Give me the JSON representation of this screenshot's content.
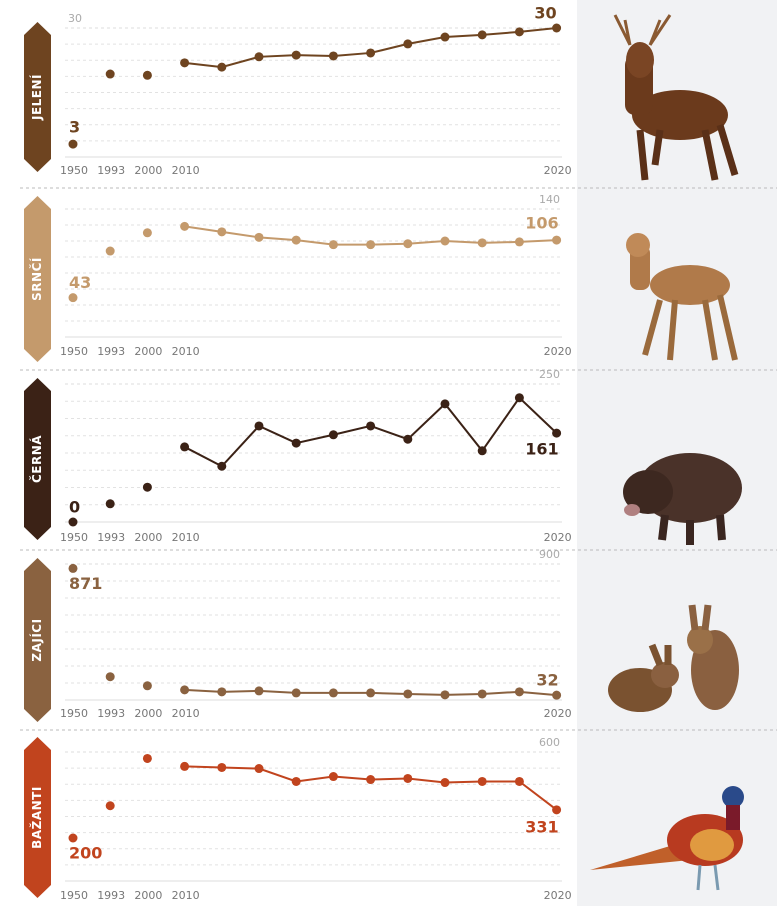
{
  "chart_data": [
    {
      "type": "line",
      "title": "JELENÍ",
      "color": "#6e4420",
      "categories": [
        "1950",
        "1993",
        "2000",
        "2010",
        null,
        null,
        null,
        null,
        null,
        null,
        null,
        null,
        null,
        "2020"
      ],
      "values": [
        3,
        19.3,
        19,
        21.9,
        20.9,
        23.3,
        23.7,
        23.5,
        24.2,
        26.3,
        27.9,
        28.4,
        29.1,
        30
      ],
      "value_labels": [
        "3",
        null,
        null,
        null,
        null,
        null,
        null,
        null,
        null,
        null,
        null,
        null,
        null,
        "30"
      ],
      "ylim": [
        0,
        30
      ],
      "yticks": [
        30
      ]
    },
    {
      "type": "line",
      "title": "SRNČÍ",
      "color": "#c49a6c",
      "categories": [
        "1950",
        "1993",
        "2000",
        "2010",
        null,
        null,
        null,
        null,
        null,
        null,
        null,
        null,
        null,
        "2020"
      ],
      "values": [
        43,
        94,
        114,
        121,
        115,
        109,
        106,
        101,
        101,
        102,
        105,
        103,
        104,
        106
      ],
      "value_labels": [
        "43",
        null,
        null,
        null,
        null,
        null,
        null,
        null,
        null,
        null,
        null,
        null,
        null,
        "106"
      ],
      "ylim": [
        0,
        140
      ],
      "yticks": [
        140
      ]
    },
    {
      "type": "line",
      "title": "ČERNÁ",
      "color": "#3b2216",
      "categories": [
        "1950",
        "1993",
        "2000",
        "2010",
        null,
        null,
        null,
        null,
        null,
        null,
        null,
        null,
        null,
        "2020"
      ],
      "values": [
        0,
        33,
        63,
        136,
        101,
        174,
        143,
        158,
        174,
        150,
        214,
        129,
        225,
        161
      ],
      "value_labels": [
        "0",
        null,
        null,
        null,
        null,
        null,
        null,
        null,
        null,
        null,
        null,
        null,
        null,
        "161"
      ],
      "ylim": [
        0,
        250
      ],
      "yticks": [
        250
      ]
    },
    {
      "type": "line",
      "title": "ZAJÍCI",
      "color": "#8a6240",
      "categories": [
        "1950",
        "1993",
        "2000",
        "2010",
        null,
        null,
        null,
        null,
        null,
        null,
        null,
        null,
        null,
        "2020"
      ],
      "values": [
        871,
        154,
        94,
        67,
        54,
        60,
        47,
        47,
        47,
        40,
        34,
        40,
        54,
        32
      ],
      "value_labels": [
        "871",
        null,
        null,
        null,
        null,
        null,
        null,
        null,
        null,
        null,
        null,
        null,
        null,
        "32"
      ],
      "ylim": [
        0,
        900
      ],
      "yticks": [
        900
      ]
    },
    {
      "type": "line",
      "title": "BAŽANTI",
      "color": "#c1441e",
      "categories": [
        "1950",
        "1993",
        "2000",
        "2010",
        null,
        null,
        null,
        null,
        null,
        null,
        null,
        null,
        null,
        "2020"
      ],
      "values": [
        200,
        350,
        570,
        533,
        528,
        523,
        463,
        486,
        472,
        477,
        458,
        463,
        463,
        331
      ],
      "value_labels": [
        "200",
        null,
        null,
        null,
        null,
        null,
        null,
        null,
        null,
        null,
        null,
        null,
        null,
        "331"
      ],
      "ylim": [
        0,
        600
      ],
      "yticks": [
        600
      ]
    }
  ]
}
